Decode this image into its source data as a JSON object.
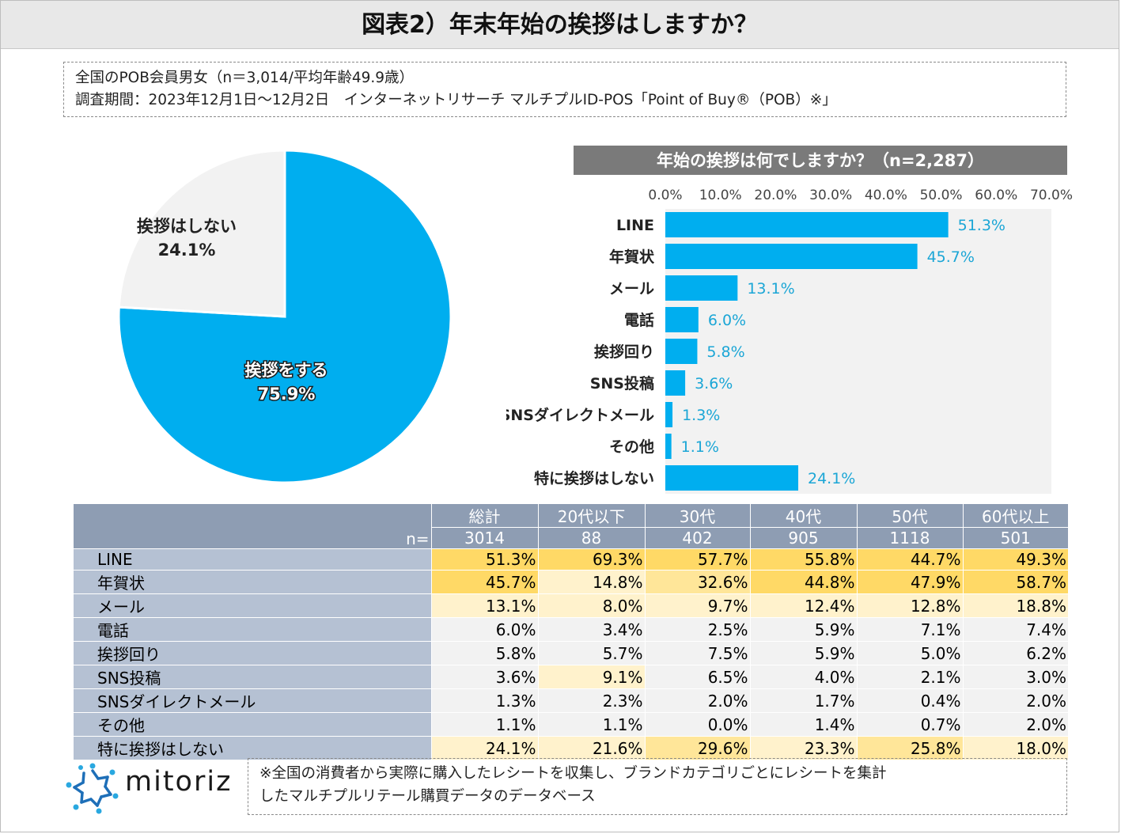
{
  "title": "図表2）年末年始の挨拶はしますか？",
  "info": {
    "line1": "全国のPOB会員男女（n＝3,014/平均年齢49.9歳）",
    "line2": "調査期間：2023年12月1日～12月2日　インターネットリサーチ マルチプルID-POS「Point of Buy®（POB）※」"
  },
  "chart_data": [
    {
      "type": "pie",
      "slices": [
        {
          "label": "挨拶をする",
          "value": 75.9,
          "value_label": "75.9%",
          "color": "#00aeef"
        },
        {
          "label": "挨拶はしない",
          "value": 24.1,
          "value_label": "24.1%",
          "color": "#f2f2f2"
        }
      ]
    },
    {
      "type": "bar",
      "orientation": "horizontal",
      "title": "年始の挨拶は何でしますか？（n=2,287）",
      "categories": [
        "LINE",
        "年賀状",
        "メール",
        "電話",
        "挨拶回り",
        "SNS投稿",
        "SNSダイレクトメール",
        "その他",
        "特に挨拶はしない"
      ],
      "values": [
        51.3,
        45.7,
        13.1,
        6.0,
        5.8,
        3.6,
        1.3,
        1.1,
        24.1
      ],
      "value_labels": [
        "51.3%",
        "45.7%",
        "13.1%",
        "6.0%",
        "5.8%",
        "3.6%",
        "1.3%",
        "1.1%",
        "24.1%"
      ],
      "xlim": [
        0,
        70
      ],
      "ticks": [
        "0.0%",
        "10.0%",
        "20.0%",
        "30.0%",
        "40.0%",
        "50.0%",
        "60.0%",
        "70.0%"
      ],
      "bar_color": "#00aeef",
      "label_color": "#1ba6d6"
    },
    {
      "type": "table",
      "columns": [
        "総計",
        "20代以下",
        "30代",
        "40代",
        "50代",
        "60代以上"
      ],
      "n_label": "n=",
      "n_values": [
        "3014",
        "88",
        "402",
        "905",
        "1118",
        "501"
      ],
      "rows": [
        {
          "label": "LINE",
          "cells": [
            "51.3%",
            "69.3%",
            "57.7%",
            "55.8%",
            "44.7%",
            "49.3%"
          ]
        },
        {
          "label": "年賀状",
          "cells": [
            "45.7%",
            "14.8%",
            "32.6%",
            "44.8%",
            "47.9%",
            "58.7%"
          ]
        },
        {
          "label": "メール",
          "cells": [
            "13.1%",
            "8.0%",
            "9.7%",
            "12.4%",
            "12.8%",
            "18.8%"
          ]
        },
        {
          "label": "電話",
          "cells": [
            "6.0%",
            "3.4%",
            "2.5%",
            "5.9%",
            "7.1%",
            "7.4%"
          ]
        },
        {
          "label": "挨拶回り",
          "cells": [
            "5.8%",
            "5.7%",
            "7.5%",
            "5.9%",
            "5.0%",
            "6.2%"
          ]
        },
        {
          "label": "SNS投稿",
          "cells": [
            "3.6%",
            "9.1%",
            "6.5%",
            "4.0%",
            "2.1%",
            "3.0%"
          ]
        },
        {
          "label": "SNSダイレクトメール",
          "cells": [
            "1.3%",
            "2.3%",
            "2.0%",
            "1.7%",
            "0.4%",
            "2.0%"
          ]
        },
        {
          "label": "その他",
          "cells": [
            "1.1%",
            "1.1%",
            "0.0%",
            "1.4%",
            "0.7%",
            "2.0%"
          ]
        },
        {
          "label": "特に挨拶はしない",
          "cells": [
            "24.1%",
            "21.6%",
            "29.6%",
            "23.3%",
            "25.8%",
            "18.0%"
          ]
        }
      ]
    }
  ],
  "logo": {
    "text": "mitoriz"
  },
  "note": {
    "line1": "※全国の消費者から実際に購入したレシートを収集し、ブランドカテゴリごとにレシートを集計",
    "line2": "したマルチプルリテール購買データのデータベース"
  },
  "colors": {
    "accent": "#00aeef",
    "table_header": "#8e9db3",
    "row_header": "#b5c1d3",
    "heat_high": "#ffd966",
    "heat_mid": "#ffe699",
    "heat_low": "#fff2cc",
    "cell_bg": "#f2f2f2"
  }
}
